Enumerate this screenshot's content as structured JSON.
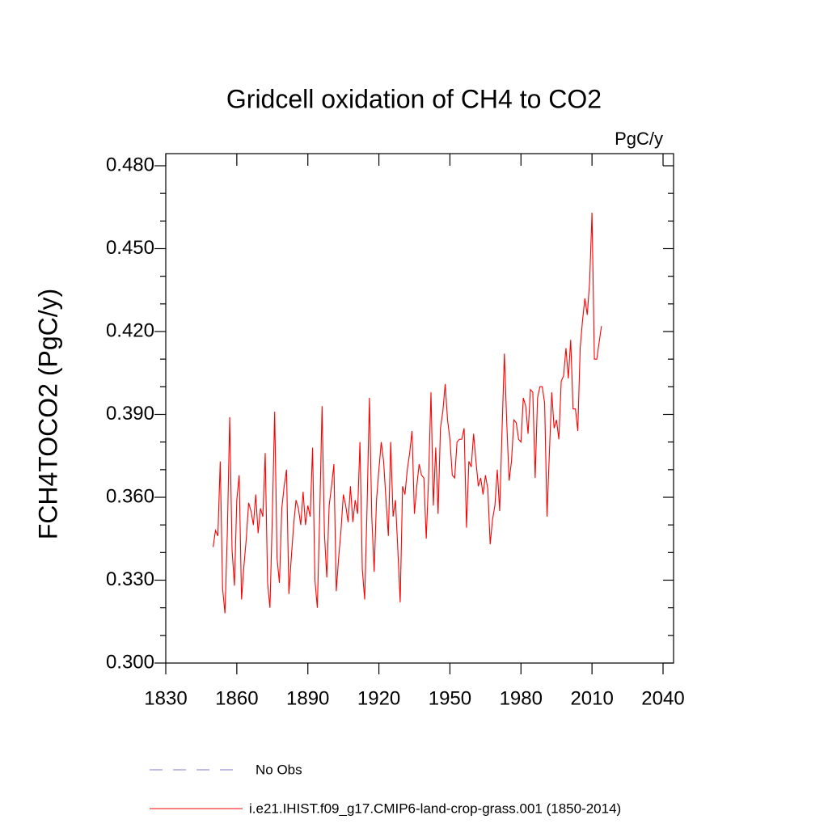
{
  "chart_data": {
    "type": "line",
    "title": "Gridcell oxidation of CH4 to CO2",
    "units": "PgC/y",
    "y_label": "FCH4TOCO2  (PgC/y)",
    "x": [
      1850,
      1851,
      1852,
      1853,
      1854,
      1855,
      1856,
      1857,
      1858,
      1859,
      1860,
      1861,
      1862,
      1863,
      1864,
      1865,
      1866,
      1867,
      1868,
      1869,
      1870,
      1871,
      1872,
      1873,
      1874,
      1875,
      1876,
      1877,
      1878,
      1879,
      1880,
      1881,
      1882,
      1883,
      1884,
      1885,
      1886,
      1887,
      1888,
      1889,
      1890,
      1891,
      1892,
      1893,
      1894,
      1895,
      1896,
      1897,
      1898,
      1899,
      1900,
      1901,
      1902,
      1903,
      1904,
      1905,
      1906,
      1907,
      1908,
      1909,
      1910,
      1911,
      1912,
      1913,
      1914,
      1915,
      1916,
      1917,
      1918,
      1919,
      1920,
      1921,
      1922,
      1923,
      1924,
      1925,
      1926,
      1927,
      1928,
      1929,
      1930,
      1931,
      1932,
      1933,
      1934,
      1935,
      1936,
      1937,
      1938,
      1939,
      1940,
      1941,
      1942,
      1943,
      1944,
      1945,
      1946,
      1947,
      1948,
      1949,
      1950,
      1951,
      1952,
      1953,
      1954,
      1955,
      1956,
      1957,
      1958,
      1959,
      1960,
      1961,
      1962,
      1963,
      1964,
      1965,
      1966,
      1967,
      1968,
      1969,
      1970,
      1971,
      1972,
      1973,
      1974,
      1975,
      1976,
      1977,
      1978,
      1979,
      1980,
      1981,
      1982,
      1983,
      1984,
      1985,
      1986,
      1987,
      1988,
      1989,
      1990,
      1991,
      1992,
      1993,
      1994,
      1995,
      1996,
      1997,
      1998,
      1999,
      2000,
      2001,
      2002,
      2003,
      2004,
      2005,
      2006,
      2007,
      2008,
      2009,
      2010,
      2011,
      2012,
      2013,
      2014
    ],
    "series": [
      {
        "name": "i.e21.IHIST.f09_g17.CMIP6-land-crop-grass.001 (1850-2014)",
        "color": "#ff0000",
        "values": [
          0.342,
          0.348,
          0.346,
          0.373,
          0.327,
          0.318,
          0.347,
          0.389,
          0.341,
          0.328,
          0.359,
          0.368,
          0.323,
          0.335,
          0.345,
          0.358,
          0.355,
          0.35,
          0.361,
          0.347,
          0.356,
          0.353,
          0.376,
          0.329,
          0.32,
          0.353,
          0.391,
          0.338,
          0.329,
          0.356,
          0.364,
          0.37,
          0.325,
          0.338,
          0.35,
          0.359,
          0.356,
          0.35,
          0.362,
          0.35,
          0.357,
          0.353,
          0.378,
          0.33,
          0.32,
          0.353,
          0.393,
          0.347,
          0.331,
          0.357,
          0.364,
          0.372,
          0.326,
          0.338,
          0.348,
          0.361,
          0.357,
          0.351,
          0.364,
          0.351,
          0.359,
          0.354,
          0.38,
          0.334,
          0.323,
          0.356,
          0.396,
          0.353,
          0.333,
          0.359,
          0.37,
          0.38,
          0.373,
          0.359,
          0.346,
          0.38,
          0.353,
          0.359,
          0.341,
          0.322,
          0.364,
          0.361,
          0.37,
          0.376,
          0.384,
          0.354,
          0.364,
          0.372,
          0.368,
          0.367,
          0.345,
          0.367,
          0.398,
          0.357,
          0.378,
          0.354,
          0.385,
          0.391,
          0.401,
          0.388,
          0.381,
          0.368,
          0.367,
          0.38,
          0.381,
          0.381,
          0.385,
          0.349,
          0.373,
          0.371,
          0.383,
          0.373,
          0.364,
          0.367,
          0.361,
          0.368,
          0.363,
          0.343,
          0.352,
          0.357,
          0.37,
          0.355,
          0.384,
          0.412,
          0.387,
          0.366,
          0.373,
          0.388,
          0.387,
          0.381,
          0.38,
          0.396,
          0.393,
          0.383,
          0.399,
          0.398,
          0.367,
          0.396,
          0.4,
          0.4,
          0.394,
          0.353,
          0.376,
          0.398,
          0.385,
          0.388,
          0.381,
          0.402,
          0.404,
          0.414,
          0.403,
          0.417,
          0.392,
          0.392,
          0.384,
          0.414,
          0.424,
          0.432,
          0.426,
          0.438,
          0.463,
          0.41,
          0.41,
          0.416,
          0.422
        ]
      }
    ],
    "legend_extra": {
      "name": "No Obs",
      "color": "#8877cc",
      "dashed": true
    },
    "xlim": [
      1830,
      2040
    ],
    "xticks": [
      1830,
      1860,
      1890,
      1920,
      1950,
      1980,
      2010,
      2040
    ],
    "ylim": [
      0.3,
      0.48
    ],
    "yticks": [
      {
        "value": 0.3,
        "label": "0.300"
      },
      {
        "value": 0.33,
        "label": "0.330"
      },
      {
        "value": 0.36,
        "label": "0.360"
      },
      {
        "value": 0.39,
        "label": "0.390"
      },
      {
        "value": 0.42,
        "label": "0.420"
      },
      {
        "value": 0.45,
        "label": "0.450"
      },
      {
        "value": 0.48,
        "label": "0.480"
      }
    ],
    "yminorticks": [
      0.31,
      0.32,
      0.34,
      0.35,
      0.37,
      0.38,
      0.4,
      0.41,
      0.43,
      0.44,
      0.46,
      0.47
    ]
  }
}
